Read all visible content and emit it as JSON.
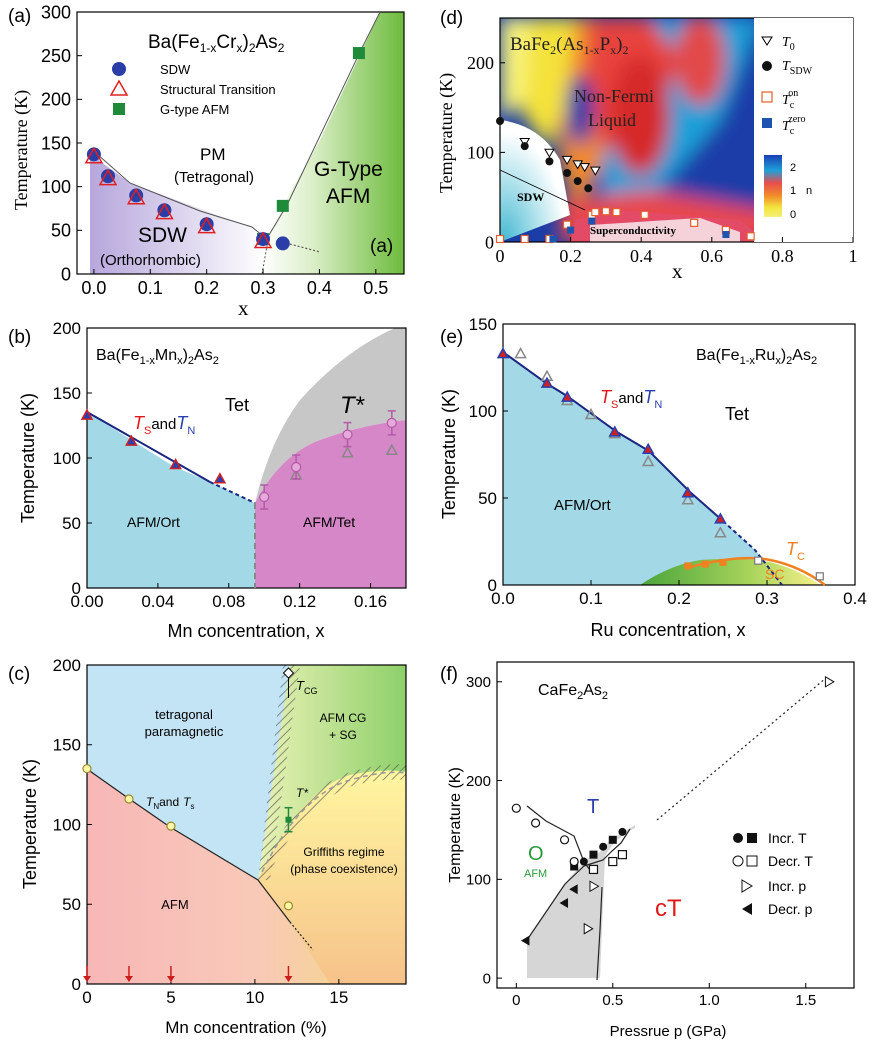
{
  "figure": {
    "panels": [
      "(a)",
      "(b)",
      "(c)",
      "(d)",
      "(e)",
      "(f)"
    ]
  },
  "chart_data": [
    {
      "id": "a",
      "type": "scatter",
      "panel_label": "(a)",
      "inner_label": "(a)",
      "title_parts": {
        "base": "Ba(Fe",
        "sub1": "1-x",
        "mid": "Cr",
        "sub2": "x",
        "end": ")",
        "sub3": "2",
        "tail": "As",
        "sub4": "2"
      },
      "xlabel": "x",
      "ylabel": "Temperature (K)",
      "xlim": [
        -0.03,
        0.55
      ],
      "ylim": [
        0,
        300
      ],
      "xticks": [
        0.0,
        0.1,
        0.2,
        0.3,
        0.4,
        0.5
      ],
      "xtick_labels": [
        "0.0",
        "0.1",
        "0.2",
        "0.3",
        "0.4",
        "0.5"
      ],
      "yticks": [
        0,
        50,
        100,
        150,
        200,
        250,
        300
      ],
      "legend": [
        {
          "label": "SDW",
          "marker": "circle",
          "color": "#2b3ea8"
        },
        {
          "label": "Structural Transition",
          "marker": "triangle-open",
          "color": "#e02020"
        },
        {
          "label": "G-type AFM",
          "marker": "square",
          "color": "#1e8a3a"
        }
      ],
      "series": [
        {
          "name": "SDW",
          "x": [
            0.0,
            0.025,
            0.075,
            0.125,
            0.2,
            0.3,
            0.335
          ],
          "y": [
            137,
            112,
            90,
            73,
            57,
            40,
            35
          ]
        },
        {
          "name": "Structural Transition",
          "x": [
            0.0,
            0.025,
            0.075,
            0.125,
            0.2,
            0.3
          ],
          "y": [
            137,
            112,
            90,
            73,
            57,
            40
          ]
        },
        {
          "name": "G-type AFM",
          "x": [
            0.3,
            0.335,
            0.47
          ],
          "y": [
            40,
            78,
            253
          ]
        }
      ],
      "regions": [
        "PM",
        "(Tetragonal)",
        "SDW",
        "(Orthorhombic)",
        "G-Type",
        "AFM"
      ]
    },
    {
      "id": "b",
      "type": "scatter",
      "panel_label": "(b)",
      "title_parts": {
        "base": "Ba(Fe",
        "sub1": "1-x",
        "mid": "Mn",
        "sub2": "x",
        "end": ")",
        "sub3": "2",
        "tail": "As",
        "sub4": "2"
      },
      "xlabel": "Mn concentration, x",
      "ylabel": "Temperature (K)",
      "xlim": [
        0,
        0.18
      ],
      "ylim": [
        0,
        200
      ],
      "xticks": [
        0.0,
        0.04,
        0.08,
        0.12,
        0.16
      ],
      "xtick_labels": [
        "0.00",
        "0.04",
        "0.08",
        "0.12",
        "0.16"
      ],
      "yticks": [
        0,
        50,
        100,
        150,
        200
      ],
      "series": [
        {
          "name": "TS and TN",
          "x": [
            0.0,
            0.025,
            0.05,
            0.075
          ],
          "y": [
            133,
            113,
            95,
            84
          ]
        },
        {
          "name": "T* circles",
          "x": [
            0.1,
            0.118,
            0.147,
            0.172
          ],
          "y": [
            70,
            93,
            118,
            127
          ]
        },
        {
          "name": "T* triangles",
          "x": [
            0.118,
            0.147,
            0.172
          ],
          "y": [
            87,
            104,
            106
          ]
        }
      ],
      "labels": {
        "tsn_t": "T",
        "tsn_s": "S",
        "tsn_and": "and",
        "tsn_n": "N",
        "tet": "Tet",
        "tstar": "T*",
        "afm_ort": "AFM/Ort",
        "afm_tet": "AFM/Tet"
      }
    },
    {
      "id": "c",
      "type": "line",
      "panel_label": "(c)",
      "xlabel": "Mn concentration (%)",
      "ylabel": "Temperature (K)",
      "xlim": [
        0,
        19
      ],
      "ylim": [
        0,
        200
      ],
      "xticks": [
        0,
        5,
        10,
        15
      ],
      "yticks": [
        0,
        50,
        100,
        150,
        200
      ],
      "series": [
        {
          "name": "TN and Ts",
          "x": [
            0,
            2.5,
            5,
            12
          ],
          "y": [
            135,
            116,
            99,
            49
          ]
        },
        {
          "name": "T* point",
          "x": [
            12
          ],
          "y": [
            103
          ]
        },
        {
          "name": "TCG point",
          "x": [
            12
          ],
          "y": [
            195
          ]
        }
      ],
      "arrows_x": [
        0,
        2.5,
        5,
        12
      ],
      "labels": {
        "tcg": "T",
        "tcg_sub": "CG",
        "tet": "tetragonal",
        "para": "paramagnetic",
        "afmcg": "AFM CG",
        "sg": "+ SG",
        "tnts": "T",
        "tn_sub": "N",
        "and": "and",
        "ts_sub": "s",
        "tstar": "T*",
        "griff1": "Griffiths regime",
        "griff2": "(phase coexistence)",
        "afm": "AFM"
      }
    },
    {
      "id": "d",
      "type": "heatmap",
      "panel_label": "(d)",
      "title_parts": {
        "base": "BaFe",
        "sub1": "2",
        "mid": "(As",
        "sub2": "1-x",
        "p": "P",
        "sub3": "x",
        "end": ")",
        "sub4": "2"
      },
      "xlabel": "x",
      "ylabel": "Temperature (K)",
      "xlim": [
        0,
        1
      ],
      "ylim": [
        0,
        250
      ],
      "xticks": [
        0,
        0.2,
        0.4,
        0.6,
        0.8,
        1
      ],
      "xtick_labels": [
        "0",
        "0.2",
        "0.4",
        "0.6",
        "0.8",
        "1"
      ],
      "yticks": [
        0,
        100,
        200
      ],
      "colorbar": {
        "ticks": [
          "2",
          "1",
          "0"
        ],
        "label": "n"
      },
      "legend": [
        {
          "label": "T",
          "sub": "0",
          "sup": "",
          "marker": "triangle-down-open"
        },
        {
          "label": "T",
          "sub": "SDW",
          "sup": "",
          "marker": "circle"
        },
        {
          "label": "T",
          "sub": "c",
          "sup": "on",
          "marker": "square-open"
        },
        {
          "label": "T",
          "sub": "c",
          "sup": "zero",
          "marker": "square-blue"
        }
      ],
      "series": [
        {
          "name": "T0",
          "x": [
            0.07,
            0.14,
            0.19,
            0.22,
            0.24,
            0.27
          ],
          "y": [
            112,
            100,
            92,
            87,
            84,
            80
          ]
        },
        {
          "name": "TSDW",
          "x": [
            0.0,
            0.07,
            0.14,
            0.19,
            0.22,
            0.25
          ],
          "y": [
            135,
            107,
            90,
            77,
            68,
            60
          ]
        },
        {
          "name": "Tc on",
          "x": [
            0.0,
            0.07,
            0.14,
            0.19,
            0.26,
            0.27,
            0.3,
            0.33,
            0.41,
            0.55,
            0.64,
            0.71
          ],
          "y": [
            0,
            0,
            0,
            16,
            27,
            30,
            31,
            30,
            27,
            18,
            10,
            3
          ]
        },
        {
          "name": "Tc zero",
          "x": [
            0.15,
            0.2,
            0.26,
            0.64
          ],
          "y": [
            0,
            10,
            20,
            5
          ]
        }
      ],
      "labels": {
        "nfl1": "Non-Fermi",
        "nfl2": "Liquid",
        "sdw": "SDW",
        "sc": "Superconductivity"
      }
    },
    {
      "id": "e",
      "type": "scatter",
      "panel_label": "(e)",
      "title_parts": {
        "base": "Ba(Fe",
        "sub1": "1-x",
        "mid": "Ru",
        "sub2": "x",
        "end": ")",
        "sub3": "2",
        "tail": "As",
        "sub4": "2"
      },
      "xlabel": "Ru concentration, x",
      "ylabel": "Temperature (K)",
      "xlim": [
        0,
        0.4
      ],
      "ylim": [
        0,
        150
      ],
      "xticks": [
        0.0,
        0.1,
        0.2,
        0.3,
        0.4
      ],
      "xtick_labels": [
        "0.0",
        "0.1",
        "0.2",
        "0.3",
        "0.4"
      ],
      "yticks": [
        0,
        50,
        100,
        150
      ],
      "series": [
        {
          "name": "TS and TN",
          "x": [
            0.0,
            0.05,
            0.073,
            0.127,
            0.165,
            0.21,
            0.247
          ],
          "y": [
            133,
            116,
            108,
            88,
            78,
            53,
            38
          ]
        },
        {
          "name": "open triangles",
          "x": [
            0.02,
            0.05,
            0.073,
            0.1,
            0.127,
            0.165,
            0.21,
            0.247
          ],
          "y": [
            133,
            120,
            106,
            98,
            87,
            71,
            49,
            30
          ]
        },
        {
          "name": "Tc",
          "x": [
            0.21,
            0.23,
            0.25,
            0.29,
            0.36
          ],
          "y": [
            11,
            12,
            13,
            14,
            5
          ]
        }
      ],
      "labels": {
        "tsn_t": "T",
        "tsn_s": "S",
        "tsn_and": "and",
        "tsn_n": "N",
        "tet": "Tet",
        "afm_ort": "AFM/Ort",
        "tc": "T",
        "tc_sub": "C",
        "sc": "SC"
      }
    },
    {
      "id": "f",
      "type": "scatter",
      "panel_label": "(f)",
      "title_parts": {
        "base": "CaFe",
        "sub1": "2",
        "tail": "As",
        "sub2": "2"
      },
      "xlabel": "Pressrue p (GPa)",
      "ylabel": "Temperature (K)",
      "xlim": [
        -0.1,
        1.75
      ],
      "ylim": [
        -10,
        320
      ],
      "xticks": [
        0,
        0.5,
        1.0,
        1.5
      ],
      "xtick_labels": [
        "0",
        "0.5",
        "1.0",
        "1.5"
      ],
      "yticks": [
        0,
        100,
        200,
        300
      ],
      "legend": [
        {
          "label": "Incr. T",
          "marker": "circle-square-filled"
        },
        {
          "label": "Decr. T",
          "marker": "circle-square-open"
        },
        {
          "label": "Incr. p",
          "marker": "triangle-right-open"
        },
        {
          "label": "Decr. p",
          "marker": "triangle-left-filled"
        }
      ],
      "series": [
        {
          "name": "Incr. T",
          "x": [
            0.3,
            0.35,
            0.4,
            0.45,
            0.5,
            0.55
          ],
          "y": [
            113,
            118,
            125,
            133,
            140,
            148
          ]
        },
        {
          "name": "Decr. T",
          "x": [
            0.0,
            0.1,
            0.25,
            0.3,
            0.4,
            0.5,
            0.55
          ],
          "y": [
            172,
            157,
            140,
            118,
            110,
            118,
            125
          ]
        },
        {
          "name": "Incr. p",
          "x": [
            0.37,
            0.4,
            1.62
          ],
          "y": [
            50,
            93,
            300
          ]
        },
        {
          "name": "Decr. p",
          "x": [
            0.05,
            0.25,
            0.3
          ],
          "y": [
            38,
            76,
            90
          ]
        }
      ],
      "labels": {
        "T": "T",
        "O": "O",
        "afm": "AFM",
        "cT": "cT"
      }
    }
  ]
}
